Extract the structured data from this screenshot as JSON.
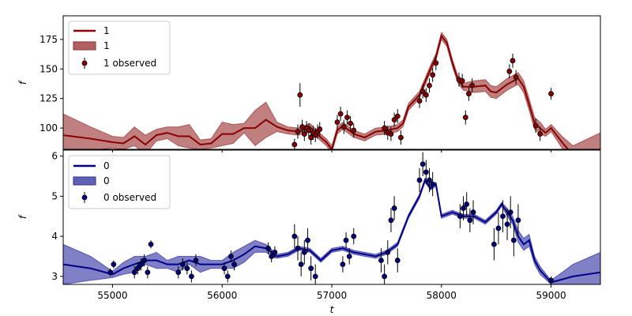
{
  "chart_data": [
    {
      "type": "line",
      "xlabel": "",
      "ylabel": "f",
      "xlim": [
        54550,
        59450
      ],
      "ylim": [
        82,
        195
      ],
      "yticks": [
        100,
        125,
        150,
        175
      ],
      "grid": false,
      "legend": {
        "position": "top-left",
        "entries": [
          "1",
          "1",
          "1 observed"
        ]
      },
      "colors": {
        "line": "#8b0000",
        "band": "#b06060",
        "points": "#8b0000"
      },
      "series": [
        {
          "name": "1",
          "x": [
            54550,
            54800,
            55000,
            55100,
            55200,
            55300,
            55400,
            55500,
            55600,
            55700,
            55800,
            55900,
            56000,
            56100,
            56200,
            56300,
            56400,
            56500,
            56600,
            56700,
            56800,
            56900,
            56950,
            57000,
            57050,
            57100,
            57200,
            57300,
            57400,
            57500,
            57600,
            57650,
            57700,
            57800,
            57900,
            57950,
            58000,
            58050,
            58100,
            58150,
            58200,
            58300,
            58400,
            58450,
            58500,
            58600,
            58700,
            58750,
            58800,
            58850,
            58900,
            58950,
            59000,
            59100,
            59200,
            59450
          ],
          "y": [
            94,
            91,
            88,
            87,
            93,
            86,
            94,
            96,
            93,
            93,
            86,
            87,
            95,
            95,
            100,
            100,
            107,
            101,
            98,
            97,
            101,
            92,
            88,
            82,
            98,
            102,
            95,
            92,
            97,
            98,
            100,
            104,
            118,
            128,
            150,
            160,
            178,
            172,
            155,
            141,
            135,
            135,
            136,
            131,
            130,
            137,
            142,
            135,
            120,
            104,
            100,
            96,
            100,
            88,
            77,
            82
          ],
          "band": [
            18,
            10,
            5,
            5,
            8,
            8,
            5,
            5,
            8,
            10,
            4,
            4,
            10,
            8,
            4,
            15,
            15,
            4,
            3,
            3,
            3,
            3,
            3,
            3,
            3,
            3,
            3,
            3,
            3,
            3,
            3,
            3,
            3,
            3,
            3,
            3,
            3,
            3,
            3,
            3,
            3,
            5,
            5,
            5,
            5,
            5,
            5,
            5,
            5,
            5,
            5,
            3,
            3,
            5,
            8,
            14
          ]
        },
        {
          "name": "1 observed",
          "x": [
            56660,
            56690,
            56710,
            56730,
            56750,
            56770,
            56790,
            56810,
            56830,
            56850,
            56870,
            56890,
            57050,
            57080,
            57110,
            57140,
            57170,
            57200,
            57480,
            57510,
            57540,
            57570,
            57600,
            57630,
            57800,
            57830,
            57860,
            57890,
            57920,
            57950,
            58160,
            58190,
            58220,
            58250,
            58280,
            58620,
            58650,
            58680,
            58860,
            58900,
            59000
          ],
          "y": [
            86,
            97,
            128,
            101,
            95,
            100,
            98,
            92,
            96,
            94,
            97,
            99,
            105,
            112,
            101,
            109,
            104,
            98,
            100,
            96,
            95,
            107,
            110,
            92,
            123,
            131,
            128,
            136,
            145,
            155,
            141,
            140,
            109,
            129,
            136,
            148,
            157,
            143,
            102,
            95,
            129
          ],
          "err": [
            5,
            6,
            10,
            6,
            6,
            6,
            6,
            6,
            6,
            6,
            6,
            6,
            6,
            6,
            6,
            6,
            6,
            6,
            6,
            6,
            6,
            6,
            6,
            6,
            6,
            6,
            6,
            6,
            6,
            6,
            6,
            6,
            6,
            6,
            6,
            6,
            6,
            6,
            6,
            6,
            5
          ]
        }
      ]
    },
    {
      "type": "line",
      "xlabel": "t",
      "ylabel": "f",
      "xlim": [
        54550,
        59450
      ],
      "ylim": [
        2.8,
        6.15
      ],
      "yticks": [
        3,
        4,
        5,
        6
      ],
      "xticks": [
        55000,
        56000,
        57000,
        58000,
        59000
      ],
      "grid": false,
      "legend": {
        "position": "top-left",
        "entries": [
          "0",
          "0",
          "0 observed"
        ]
      },
      "colors": {
        "line": "#00008b",
        "band": "#6060b8",
        "points": "#000080"
      },
      "series": [
        {
          "name": "0",
          "x": [
            54550,
            54800,
            55000,
            55100,
            55200,
            55300,
            55400,
            55500,
            55600,
            55700,
            55800,
            55900,
            56000,
            56100,
            56200,
            56300,
            56400,
            56500,
            56600,
            56700,
            56800,
            56900,
            57000,
            57100,
            57200,
            57300,
            57400,
            57500,
            57600,
            57700,
            57800,
            57850,
            57900,
            57950,
            58000,
            58100,
            58200,
            58300,
            58400,
            58500,
            58550,
            58600,
            58650,
            58700,
            58750,
            58800,
            58850,
            58900,
            59000,
            59200,
            59450
          ],
          "y": [
            3.3,
            3.2,
            3.05,
            3.2,
            3.3,
            3.4,
            3.4,
            3.3,
            3.3,
            3.4,
            3.3,
            3.3,
            3.3,
            3.4,
            3.55,
            3.75,
            3.7,
            3.5,
            3.55,
            3.7,
            3.65,
            3.4,
            3.65,
            3.7,
            3.6,
            3.55,
            3.5,
            3.6,
            3.8,
            4.5,
            5.0,
            5.4,
            5.2,
            5.3,
            4.5,
            4.6,
            4.5,
            4.5,
            4.35,
            4.6,
            4.8,
            4.6,
            4.4,
            4.0,
            3.8,
            3.9,
            3.4,
            3.15,
            2.85,
            3.0,
            3.1
          ],
          "band": [
            0.5,
            0.3,
            0.08,
            0.15,
            0.2,
            0.1,
            0.2,
            0.1,
            0.2,
            0.1,
            0.2,
            0.1,
            0.1,
            0.2,
            0.2,
            0.15,
            0.1,
            0.05,
            0.05,
            0.05,
            0.05,
            0.05,
            0.05,
            0.05,
            0.05,
            0.05,
            0.05,
            0.05,
            0.05,
            0.05,
            0.05,
            0.05,
            0.05,
            0.05,
            0.05,
            0.05,
            0.05,
            0.05,
            0.05,
            0.05,
            0.05,
            0.1,
            0.1,
            0.15,
            0.15,
            0.15,
            0.1,
            0.1,
            0.05,
            0.3,
            0.5
          ]
        },
        {
          "name": "0 observed",
          "x": [
            54980,
            55010,
            55200,
            55230,
            55260,
            55290,
            55320,
            55350,
            55600,
            55640,
            55680,
            55720,
            55760,
            56020,
            56050,
            56080,
            56110,
            56420,
            56450,
            56480,
            56660,
            56690,
            56720,
            56750,
            56780,
            56810,
            56850,
            57100,
            57130,
            57160,
            57200,
            57450,
            57480,
            57510,
            57540,
            57570,
            57600,
            57800,
            57830,
            57860,
            57890,
            57920,
            58170,
            58200,
            58230,
            58260,
            58290,
            58480,
            58520,
            58560,
            58600,
            58630,
            58660,
            58700,
            59000
          ],
          "y": [
            3.1,
            3.3,
            3.1,
            3.2,
            3.3,
            3.4,
            3.1,
            3.8,
            3.1,
            3.3,
            3.2,
            3.0,
            3.4,
            3.2,
            3.0,
            3.5,
            3.3,
            3.7,
            3.5,
            3.6,
            4.0,
            3.7,
            3.3,
            3.6,
            3.9,
            3.2,
            3.0,
            3.3,
            3.9,
            3.5,
            4.0,
            3.4,
            3.0,
            3.6,
            4.4,
            4.7,
            3.4,
            5.4,
            5.8,
            5.6,
            5.4,
            5.3,
            4.5,
            4.7,
            4.8,
            4.4,
            4.6,
            3.8,
            4.2,
            4.5,
            4.3,
            4.6,
            3.9,
            4.4,
            2.9
          ],
          "err": [
            0.1,
            0.1,
            0.15,
            0.15,
            0.15,
            0.15,
            0.15,
            0.1,
            0.15,
            0.15,
            0.15,
            0.15,
            0.15,
            0.15,
            0.15,
            0.15,
            0.15,
            0.15,
            0.15,
            0.15,
            0.3,
            0.3,
            0.3,
            0.3,
            0.3,
            0.3,
            0.3,
            0.2,
            0.2,
            0.2,
            0.2,
            0.3,
            0.3,
            0.3,
            0.3,
            0.3,
            0.3,
            0.3,
            0.3,
            0.3,
            0.3,
            0.3,
            0.3,
            0.3,
            0.3,
            0.3,
            0.3,
            0.4,
            0.4,
            0.4,
            0.4,
            0.4,
            0.4,
            0.4,
            0.1
          ]
        }
      ]
    }
  ]
}
